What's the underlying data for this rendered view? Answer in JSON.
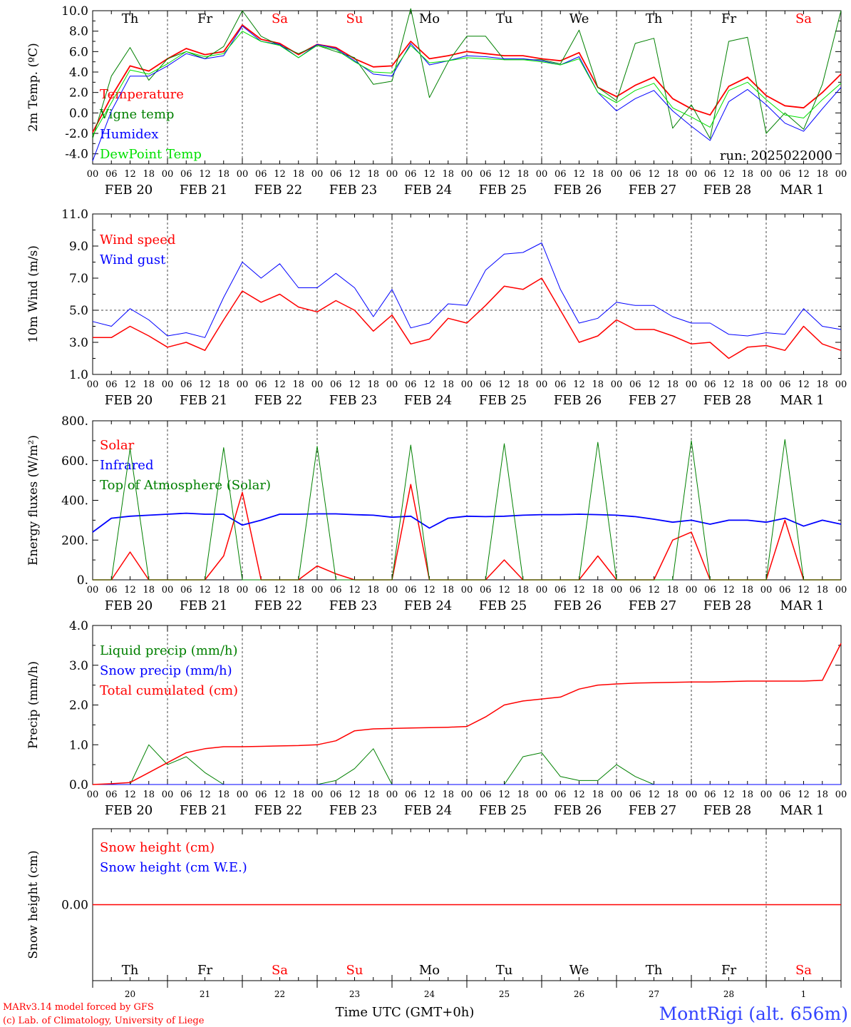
{
  "colors": {
    "red": "#ff0000",
    "green": "#008000",
    "blue": "#0000ff",
    "lightgreen": "#00e000",
    "title_blue": "#3344ff",
    "axis": "#000000"
  },
  "days": [
    "Th",
    "Fr",
    "Sa",
    "Su",
    "Mo",
    "Tu",
    "We",
    "Th",
    "Fr",
    "Sa"
  ],
  "weekend_days": [
    "Sa",
    "Su"
  ],
  "dates": [
    "FEB 20",
    "FEB 21",
    "FEB 22",
    "FEB 23",
    "FEB 24",
    "FEB 25",
    "FEB 26",
    "FEB 27",
    "FEB 28",
    "MAR  1"
  ],
  "day_numbers": [
    "20",
    "21",
    "22",
    "23",
    "24",
    "25",
    "26",
    "27",
    "28",
    "1"
  ],
  "hour_ticks": [
    "00",
    "06",
    "12",
    "18"
  ],
  "hour_end_tick": "00",
  "run_label": "run: 2025022000",
  "footer": {
    "model": "MARv3.14 model forced by GFS",
    "lab": "(c) Lab. of Climatology, University of Liege",
    "time_label": "Time UTC (GMT+0h)",
    "station": "MontRigi (alt. 656m)"
  },
  "chart_data": [
    {
      "type": "line",
      "title": "",
      "ylabel": "2m Temp. (ºC)",
      "ylim": [
        -5,
        10
      ],
      "yticks": [
        "10.0",
        "8.0",
        "6.0",
        "4.0",
        "2.0",
        "0.0",
        "-2.0",
        "-4.0"
      ],
      "ytick_values": [
        10,
        8,
        6,
        4,
        2,
        0,
        -2,
        -4
      ],
      "gridlines": [],
      "x": [
        0,
        6,
        12,
        18,
        24,
        30,
        36,
        42,
        48,
        54,
        60,
        66,
        72,
        78,
        84,
        90,
        96,
        102,
        108,
        114,
        120,
        126,
        132,
        138,
        144,
        150,
        156,
        162,
        168,
        174,
        180,
        186,
        192,
        198,
        204,
        210,
        216,
        222,
        228,
        234,
        240
      ],
      "series": [
        {
          "name": "Temperature",
          "color": "red",
          "width": 1.8,
          "values": [
            -1.9,
            1.6,
            4.6,
            4.1,
            5.3,
            6.3,
            5.7,
            6.0,
            8.6,
            7.2,
            6.8,
            5.7,
            6.7,
            6.4,
            5.3,
            4.5,
            4.6,
            7.0,
            5.3,
            5.6,
            6.0,
            5.8,
            5.6,
            5.6,
            5.3,
            5.1,
            5.9,
            2.5,
            1.6,
            2.7,
            3.5,
            1.4,
            0.4,
            -0.2,
            2.6,
            3.5,
            1.7,
            0.7,
            0.5,
            2.0,
            3.8
          ]
        },
        {
          "name": "Vigne temp",
          "color": "green",
          "width": 1.0,
          "values": [
            -2.5,
            3.6,
            6.4,
            3.2,
            5.3,
            6.0,
            5.3,
            6.5,
            10.0,
            7.5,
            6.6,
            5.8,
            6.6,
            6.0,
            5.4,
            2.8,
            3.1,
            10.2,
            1.5,
            5.0,
            7.5,
            7.5,
            5.2,
            5.2,
            5.2,
            4.8,
            8.1,
            2.5,
            1.2,
            6.8,
            7.3,
            -1.5,
            0.8,
            -2.5,
            7.0,
            7.4,
            -2.0,
            0.0,
            -1.6,
            2.8,
            10.0
          ]
        },
        {
          "name": "Humidex",
          "color": "blue",
          "width": 1.0,
          "values": [
            -4.7,
            0.2,
            3.6,
            3.6,
            4.6,
            5.8,
            5.3,
            5.6,
            8.5,
            7.0,
            6.7,
            5.4,
            6.7,
            6.3,
            5.1,
            3.8,
            3.6,
            6.8,
            4.7,
            5.1,
            5.6,
            5.5,
            5.3,
            5.3,
            5.1,
            4.7,
            5.5,
            2.0,
            0.2,
            1.4,
            2.2,
            0.2,
            -1.3,
            -2.7,
            1.1,
            2.3,
            0.8,
            -1.0,
            -1.8,
            0.4,
            2.5
          ]
        },
        {
          "name": "DewPoint Temp",
          "color": "lightgreen",
          "width": 1.0,
          "values": [
            -2.2,
            1.0,
            4.2,
            3.8,
            4.8,
            6.0,
            5.5,
            5.8,
            8.0,
            7.0,
            6.6,
            5.4,
            6.6,
            6.2,
            5.0,
            4.0,
            3.9,
            6.6,
            4.9,
            5.1,
            5.4,
            5.3,
            5.2,
            5.2,
            5.0,
            4.7,
            5.3,
            2.0,
            1.0,
            2.2,
            2.9,
            0.5,
            -0.4,
            -1.4,
            2.2,
            3.0,
            1.3,
            -0.2,
            -0.5,
            1.3,
            2.9
          ]
        }
      ]
    },
    {
      "type": "line",
      "title": "",
      "ylabel": "10m Wind (m/s)",
      "ylim": [
        1.0,
        11.0
      ],
      "yticks": [
        "11.0",
        "9.0",
        "7.0",
        "5.0",
        "3.0",
        "1.0"
      ],
      "ytick_values": [
        11,
        9,
        7,
        5,
        3,
        1
      ],
      "gridlines": [
        5.0
      ],
      "x": [
        0,
        6,
        12,
        18,
        24,
        30,
        36,
        42,
        48,
        54,
        60,
        66,
        72,
        78,
        84,
        90,
        96,
        102,
        108,
        114,
        120,
        126,
        132,
        138,
        144,
        150,
        156,
        162,
        168,
        174,
        180,
        186,
        192,
        198,
        204,
        210,
        216,
        222,
        228,
        234,
        240
      ],
      "series": [
        {
          "name": "Wind speed",
          "color": "red",
          "width": 1.5,
          "values": [
            3.3,
            3.3,
            4.0,
            3.4,
            2.7,
            3.0,
            2.5,
            4.4,
            6.2,
            5.5,
            6.0,
            5.2,
            4.9,
            5.6,
            5.0,
            3.7,
            4.7,
            2.9,
            3.2,
            4.5,
            4.2,
            5.3,
            6.5,
            6.3,
            7.0,
            5.0,
            3.0,
            3.4,
            4.4,
            3.8,
            3.8,
            3.4,
            2.9,
            3.0,
            2.0,
            2.7,
            2.8,
            2.5,
            4.0,
            2.9,
            2.5
          ]
        },
        {
          "name": "Wind gust",
          "color": "blue",
          "width": 1.0,
          "values": [
            4.3,
            4.0,
            5.1,
            4.4,
            3.4,
            3.6,
            3.3,
            5.8,
            8.0,
            7.0,
            7.9,
            6.4,
            6.4,
            7.3,
            6.4,
            4.6,
            6.3,
            3.9,
            4.2,
            5.4,
            5.3,
            7.5,
            8.5,
            8.6,
            9.2,
            6.3,
            4.2,
            4.5,
            5.5,
            5.3,
            5.3,
            4.6,
            4.2,
            4.2,
            3.5,
            3.4,
            3.6,
            3.5,
            5.1,
            4.0,
            3.8
          ]
        }
      ]
    },
    {
      "type": "line",
      "title": "",
      "ylabel": "Energy fluxes (W/m²)",
      "ylim": [
        0,
        800
      ],
      "yticks": [
        "800.",
        "600.",
        "400.",
        "200.",
        "0."
      ],
      "ytick_values": [
        800,
        600,
        400,
        200,
        0
      ],
      "gridlines": [],
      "x": [
        0,
        6,
        12,
        18,
        24,
        30,
        36,
        42,
        48,
        54,
        60,
        66,
        72,
        78,
        84,
        90,
        96,
        102,
        108,
        114,
        120,
        126,
        132,
        138,
        144,
        150,
        156,
        162,
        168,
        174,
        180,
        186,
        192,
        198,
        204,
        210,
        216,
        222,
        228,
        234,
        240
      ],
      "series": [
        {
          "name": "Solar",
          "color": "red",
          "width": 1.5,
          "values": [
            0,
            0,
            140,
            0,
            0,
            0,
            0,
            120,
            440,
            0,
            0,
            0,
            70,
            30,
            0,
            0,
            0,
            480,
            0,
            0,
            0,
            0,
            100,
            0,
            0,
            0,
            0,
            120,
            0,
            0,
            0,
            200,
            240,
            0,
            0,
            0,
            0,
            300,
            0,
            0,
            0
          ]
        },
        {
          "name": "Infrared",
          "color": "blue",
          "width": 1.8,
          "values": [
            240,
            310,
            320,
            325,
            330,
            335,
            330,
            330,
            275,
            300,
            330,
            330,
            332,
            332,
            328,
            325,
            315,
            320,
            260,
            310,
            320,
            318,
            320,
            325,
            328,
            328,
            330,
            328,
            325,
            318,
            305,
            290,
            300,
            280,
            300,
            300,
            290,
            310,
            270,
            300,
            280
          ]
        },
        {
          "name": "Top of Atmosphere (Solar)",
          "color": "green",
          "width": 1.0,
          "values": [
            0,
            0,
            660,
            0,
            0,
            0,
            0,
            665,
            0,
            0,
            0,
            0,
            672,
            0,
            0,
            0,
            0,
            678,
            0,
            0,
            0,
            0,
            685,
            0,
            0,
            0,
            0,
            692,
            0,
            0,
            0,
            0,
            700,
            0,
            0,
            0,
            0,
            706,
            0,
            0,
            0
          ]
        }
      ]
    },
    {
      "type": "line",
      "title": "",
      "ylabel": "Precip (mm/h)",
      "ylim": [
        0,
        4.0
      ],
      "yticks": [
        "4.0",
        "3.0",
        "2.0",
        "1.0",
        "0.0"
      ],
      "ytick_values": [
        4,
        3,
        2,
        1,
        0
      ],
      "gridlines": [],
      "x": [
        0,
        6,
        12,
        18,
        24,
        30,
        36,
        42,
        48,
        54,
        60,
        66,
        72,
        78,
        84,
        90,
        96,
        102,
        108,
        114,
        120,
        126,
        132,
        138,
        144,
        150,
        156,
        162,
        168,
        174,
        180,
        186,
        192,
        198,
        204,
        210,
        216,
        222,
        228,
        234,
        240
      ],
      "series": [
        {
          "name": "Liquid precip (mm/h)",
          "color": "green",
          "width": 1.0,
          "values": [
            0,
            0,
            0,
            1.0,
            0.5,
            0.7,
            0.3,
            0,
            0,
            0,
            0,
            0,
            0,
            0.1,
            0.4,
            0.9,
            0,
            0,
            0,
            0,
            0,
            0,
            0,
            0.7,
            0.8,
            0.2,
            0.1,
            0.1,
            0.5,
            0.2,
            0,
            0,
            0,
            0,
            0,
            0,
            0,
            0,
            0,
            0,
            0
          ]
        },
        {
          "name": "Snow precip (mm/h)",
          "color": "blue",
          "width": 1.0,
          "values": [
            0,
            0,
            0,
            0,
            0,
            0,
            0,
            0,
            0,
            0,
            0,
            0,
            0,
            0,
            0,
            0,
            0,
            0,
            0,
            0,
            0,
            0,
            0,
            0,
            0,
            0,
            0,
            0,
            0,
            0,
            0,
            0,
            0,
            0,
            0,
            0,
            0,
            0,
            0,
            0,
            0
          ]
        },
        {
          "name": "Total cumulated (cm)",
          "color": "red",
          "width": 1.5,
          "values": [
            0,
            0.02,
            0.05,
            0.3,
            0.55,
            0.8,
            0.9,
            0.95,
            0.95,
            0.96,
            0.97,
            0.98,
            1.0,
            1.1,
            1.35,
            1.4,
            1.41,
            1.42,
            1.43,
            1.44,
            1.46,
            1.7,
            2.0,
            2.1,
            2.15,
            2.2,
            2.4,
            2.5,
            2.53,
            2.55,
            2.56,
            2.57,
            2.58,
            2.58,
            2.59,
            2.6,
            2.6,
            2.6,
            2.6,
            2.62,
            3.55
          ]
        }
      ]
    },
    {
      "type": "line",
      "title": "",
      "ylabel": "Snow height (cm)",
      "ylim": [
        -1,
        1
      ],
      "yticks": [
        "0.00"
      ],
      "ytick_values": [
        0
      ],
      "gridlines": [],
      "x": [
        0,
        240
      ],
      "series": [
        {
          "name": "Snow height (cm)",
          "color": "red",
          "width": 1.5,
          "values": [
            0,
            0
          ]
        },
        {
          "name": "Snow height (cm W.E.)",
          "color": "blue",
          "width": 0,
          "values": [
            0,
            0
          ]
        }
      ]
    }
  ]
}
